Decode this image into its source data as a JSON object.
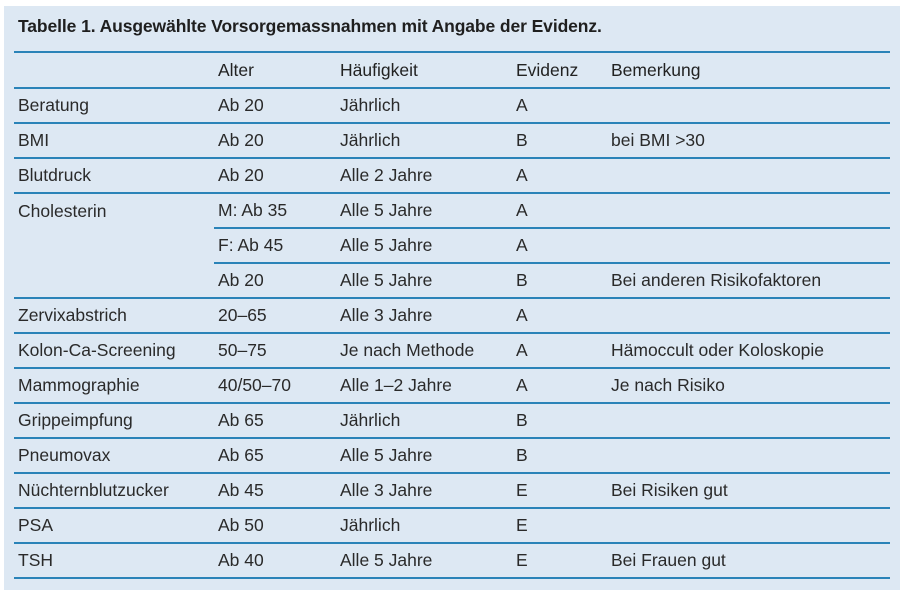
{
  "caption": "Tabelle 1. Ausgewählte Vorsorgemassnahmen mit Angabe der Evidenz.",
  "headers": [
    "",
    "Alter",
    "Häufigkeit",
    "Evidenz",
    "Bemerkung"
  ],
  "rows": [
    [
      "Beratung",
      "Ab 20",
      "Jährlich",
      "A",
      ""
    ],
    [
      "BMI",
      "Ab 20",
      "Jährlich",
      "B",
      "bei BMI >30"
    ],
    [
      "Blutdruck",
      "Ab 20",
      "Alle 2 Jahre",
      "A",
      ""
    ],
    [
      "Cholesterin",
      "M: Ab 35",
      "Alle 5 Jahre",
      "A",
      ""
    ],
    [
      "",
      "F: Ab 45",
      "Alle 5 Jahre",
      "A",
      ""
    ],
    [
      "",
      "Ab 20",
      "Alle 5 Jahre",
      "B",
      "Bei anderen Risikofaktoren"
    ],
    [
      "Zervixabstrich",
      "20–65",
      "Alle 3 Jahre",
      "A",
      ""
    ],
    [
      "Kolon-Ca-Screening",
      "50–75",
      "Je nach Methode",
      "A",
      "Hämoccult oder Koloskopie"
    ],
    [
      "Mammographie",
      "40/50–70",
      "Alle 1–2 Jahre",
      "A",
      "Je nach Risiko"
    ],
    [
      "Grippeimpfung",
      "Ab 65",
      "Jährlich",
      "B",
      ""
    ],
    [
      "Pneumovax",
      "Ab 65",
      "Alle 5 Jahre",
      "B",
      ""
    ],
    [
      "Nüchternblutzucker",
      "Ab 45",
      "Alle 3 Jahre",
      "E",
      "Bei Risiken gut"
    ],
    [
      "PSA",
      "Ab 50",
      "Jährlich",
      "E",
      ""
    ],
    [
      "TSH",
      "Ab 40",
      "Alle 5 Jahre",
      "E",
      "Bei Frauen gut"
    ]
  ]
}
